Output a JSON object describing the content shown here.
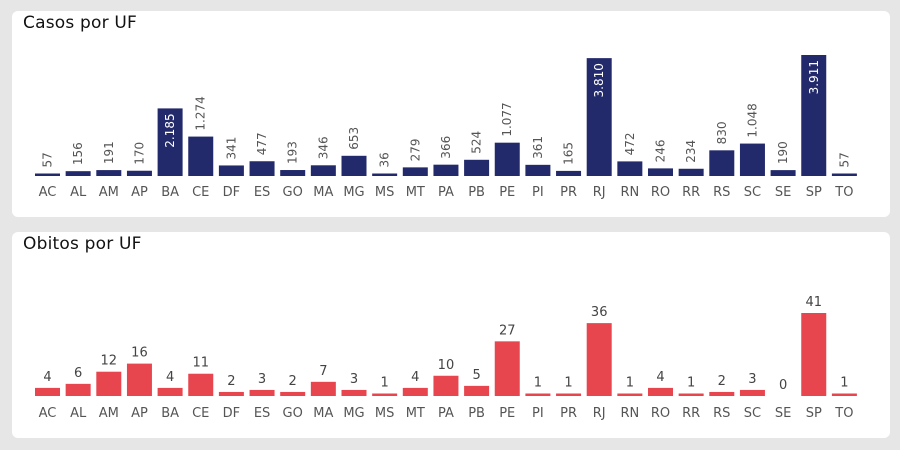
{
  "chart_data": [
    {
      "type": "bar",
      "title": "Casos por UF",
      "color": "#232a6b",
      "categories": [
        "AC",
        "AL",
        "AM",
        "AP",
        "BA",
        "CE",
        "DF",
        "ES",
        "GO",
        "MA",
        "MG",
        "MS",
        "MT",
        "PA",
        "PB",
        "PE",
        "PI",
        "PR",
        "RJ",
        "RN",
        "RO",
        "RR",
        "RS",
        "SC",
        "SE",
        "SP",
        "TO"
      ],
      "values": [
        57,
        156,
        191,
        170,
        2185,
        1274,
        341,
        477,
        193,
        346,
        653,
        36,
        279,
        366,
        524,
        1077,
        361,
        165,
        3810,
        472,
        246,
        234,
        830,
        1048,
        190,
        3911,
        57
      ],
      "labels": [
        "57",
        "156",
        "191",
        "170",
        "2.185",
        "1.274",
        "341",
        "477",
        "193",
        "346",
        "653",
        "36",
        "279",
        "366",
        "524",
        "1.077",
        "361",
        "165",
        "3.810",
        "472",
        "246",
        "234",
        "830",
        "1.048",
        "190",
        "3.911",
        "57"
      ],
      "label_orientation": "vertical",
      "ylim": [
        0,
        3911
      ]
    },
    {
      "type": "bar",
      "title": "Obitos por UF",
      "color": "#e8464f",
      "categories": [
        "AC",
        "AL",
        "AM",
        "AP",
        "BA",
        "CE",
        "DF",
        "ES",
        "GO",
        "MA",
        "MG",
        "MS",
        "MT",
        "PA",
        "PB",
        "PE",
        "PI",
        "PR",
        "RJ",
        "RN",
        "RO",
        "RR",
        "RS",
        "SC",
        "SE",
        "SP",
        "TO"
      ],
      "values": [
        4,
        6,
        12,
        16,
        4,
        11,
        2,
        3,
        2,
        7,
        3,
        1,
        4,
        10,
        5,
        27,
        1,
        1,
        36,
        1,
        4,
        1,
        2,
        3,
        0,
        41,
        1
      ],
      "labels": [
        "4",
        "6",
        "12",
        "16",
        "4",
        "11",
        "2",
        "3",
        "2",
        "7",
        "3",
        "1",
        "4",
        "10",
        "5",
        "27",
        "1",
        "1",
        "36",
        "1",
        "4",
        "1",
        "2",
        "3",
        "0",
        "41",
        "1"
      ],
      "label_orientation": "horizontal",
      "ylim": [
        0,
        41
      ]
    }
  ]
}
